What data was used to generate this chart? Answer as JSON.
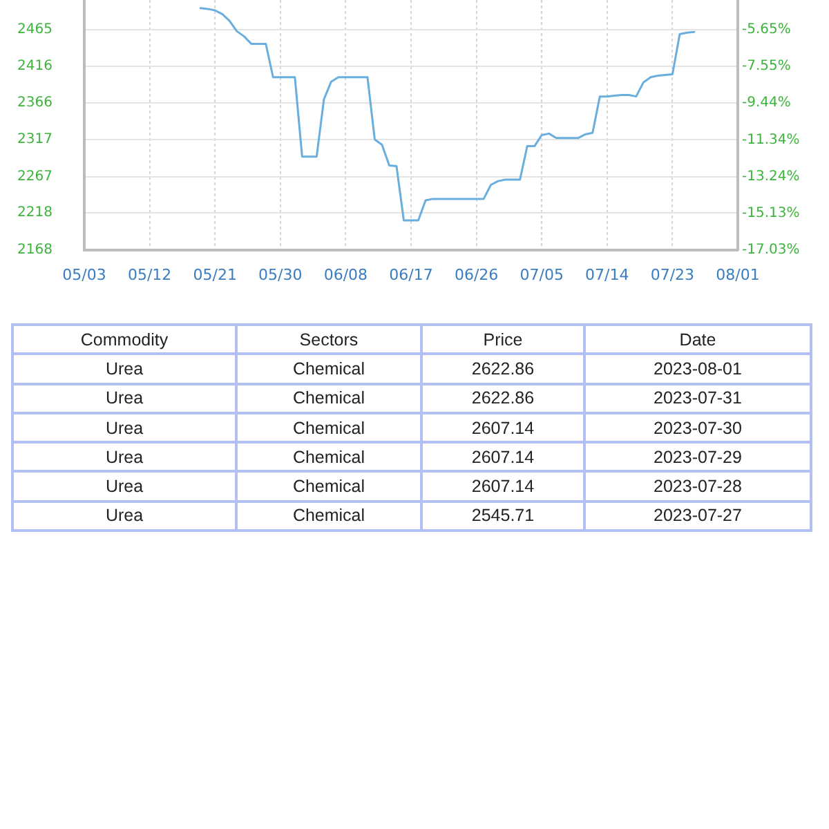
{
  "chart_data": [
    {
      "type": "line",
      "x": [
        "--05-19",
        "--05-20",
        "--05-21",
        "--05-22",
        "--05-23",
        "--05-24",
        "--05-25",
        "--05-26",
        "--05-27",
        "--05-28",
        "--05-29",
        "--05-30",
        "--05-31",
        "--06-01",
        "--06-02",
        "--06-03",
        "--06-04",
        "--06-05",
        "--06-06",
        "--06-07",
        "--06-08",
        "--06-09",
        "--06-10",
        "--06-11",
        "--06-12",
        "--06-13",
        "--06-14",
        "--06-15",
        "--06-16",
        "--06-17",
        "--06-18",
        "--06-19",
        "--06-20",
        "--06-21",
        "--06-22",
        "--06-23",
        "--06-24",
        "--06-25",
        "--06-26",
        "--06-27",
        "--06-28",
        "--06-29",
        "--06-30",
        "--07-01",
        "--07-02",
        "--07-03",
        "--07-04",
        "--07-05",
        "--07-06",
        "--07-07",
        "--07-08",
        "--07-09",
        "--07-10",
        "--07-11",
        "--07-12",
        "--07-13",
        "--07-14",
        "--07-15",
        "--07-16",
        "--07-17",
        "--07-18",
        "--07-19",
        "--07-20",
        "--07-21",
        "--07-22",
        "--07-23",
        "--07-24",
        "--07-25",
        "--07-26"
      ],
      "series": [
        {
          "color": "#6aaede",
          "values": [
            2494,
            2493,
            2491,
            2486,
            2477,
            2463,
            2456,
            2446,
            2446,
            2446,
            2401,
            2401,
            2401,
            2401,
            2294,
            2294,
            2294,
            2371,
            2395,
            2401,
            2401,
            2401,
            2401,
            2401,
            2317,
            2310,
            2282,
            2281,
            2208,
            2208,
            2208,
            2235,
            2237,
            2237,
            2237,
            2237,
            2237,
            2237,
            2237,
            2237,
            2256,
            2261,
            2263,
            2263,
            2263,
            2308,
            2308,
            2323,
            2325,
            2319,
            2319,
            2319,
            2319,
            2324,
            2326,
            2375,
            2375,
            2376,
            2377,
            2377,
            2375,
            2394,
            2401,
            2403,
            2404,
            2405,
            2459,
            2461,
            2462
          ]
        }
      ],
      "xlim": [
        "--05-03",
        "--08-01"
      ],
      "xticks": [
        {
          "value": "--05-03",
          "label": "05/03"
        },
        {
          "value": "--05-12",
          "label": "05/12"
        },
        {
          "value": "--05-21",
          "label": "05/21"
        },
        {
          "value": "--05-30",
          "label": "05/30"
        },
        {
          "value": "--06-08",
          "label": "06/08"
        },
        {
          "value": "--06-17",
          "label": "06/17"
        },
        {
          "value": "--06-26",
          "label": "06/26"
        },
        {
          "value": "--07-05",
          "label": "07/05"
        },
        {
          "value": "--07-14",
          "label": "07/14"
        },
        {
          "value": "--07-23",
          "label": "07/23"
        },
        {
          "value": "--08-01",
          "label": "08/01"
        }
      ],
      "ylim": [
        2168,
        2505
      ],
      "yticks": [
        2168,
        2218,
        2267,
        2317,
        2366,
        2416,
        2465
      ],
      "y2lim": [
        -17.03,
        -4.12
      ],
      "y2ticks": [
        {
          "value": -17.03,
          "label": "-17.03%"
        },
        {
          "value": -15.13,
          "label": "-15.13%"
        },
        {
          "value": -13.24,
          "label": "-13.24%"
        },
        {
          "value": -11.34,
          "label": "-11.34%"
        },
        {
          "value": -9.44,
          "label": "-9.44%"
        },
        {
          "value": -7.55,
          "label": "-7.55%"
        },
        {
          "value": -5.65,
          "label": "-5.65%"
        }
      ],
      "grid": true
    },
    {
      "type": "other",
      "categories": [
        "Commodity",
        "Sectors",
        "Price",
        "Date"
      ],
      "cell_labels": [
        [
          "Urea",
          "Chemical",
          "2622.86",
          "2023-08-01"
        ],
        [
          "Urea",
          "Chemical",
          "2622.86",
          "2023-07-31"
        ],
        [
          "Urea",
          "Chemical",
          "2607.14",
          "2023-07-30"
        ],
        [
          "Urea",
          "Chemical",
          "2607.14",
          "2023-07-29"
        ],
        [
          "Urea",
          "Chemical",
          "2607.14",
          "2023-07-28"
        ],
        [
          "Urea",
          "Chemical",
          "2545.71",
          "2023-07-27"
        ]
      ]
    }
  ]
}
